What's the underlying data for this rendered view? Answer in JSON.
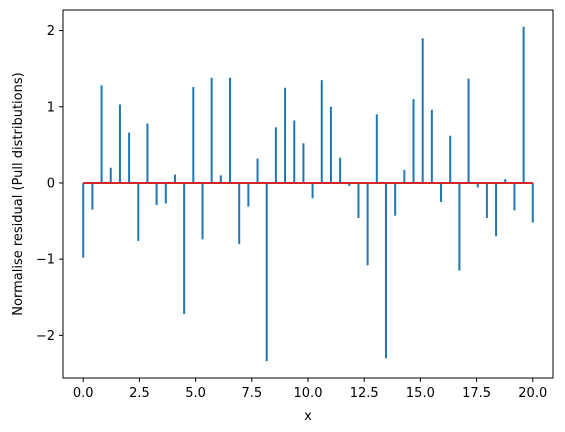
{
  "chart_data": {
    "type": "stem",
    "title": "",
    "xlabel": "x",
    "ylabel": "Normalise residual (Pull distributions)",
    "xlim": [
      -0.9,
      20.9
    ],
    "ylim": [
      -2.56,
      2.27
    ],
    "xticks": [
      0.0,
      2.5,
      5.0,
      7.5,
      10.0,
      12.5,
      15.0,
      17.5,
      20.0
    ],
    "xtick_labels": [
      "0.0",
      "2.5",
      "5.0",
      "7.5",
      "10.0",
      "12.5",
      "15.0",
      "17.5",
      "20.0"
    ],
    "yticks": [
      -2,
      -1,
      0,
      1,
      2
    ],
    "ytick_labels": [
      "−2",
      "−1",
      "0",
      "1",
      "2"
    ],
    "grid": false,
    "baseline": 0,
    "colors": {
      "stem": "#1f77b4",
      "baseline": "#d62728",
      "axes": "#000000"
    },
    "x": [
      0.0,
      0.408,
      0.816,
      1.224,
      1.633,
      2.041,
      2.449,
      2.857,
      3.265,
      3.673,
      4.082,
      4.49,
      4.898,
      5.306,
      5.714,
      6.122,
      6.531,
      6.939,
      7.347,
      7.755,
      8.163,
      8.571,
      8.98,
      9.388,
      9.796,
      10.204,
      10.612,
      11.02,
      11.429,
      11.837,
      12.245,
      12.653,
      13.061,
      13.469,
      13.878,
      14.286,
      14.694,
      15.102,
      15.51,
      15.918,
      16.327,
      16.735,
      17.143,
      17.551,
      17.959,
      18.367,
      18.776,
      19.184,
      19.592,
      20.0
    ],
    "values": [
      -0.98,
      -0.35,
      1.28,
      0.2,
      1.03,
      0.66,
      -0.76,
      0.78,
      -0.29,
      -0.27,
      0.11,
      -1.72,
      1.26,
      -0.74,
      1.38,
      0.1,
      1.38,
      -0.8,
      -0.31,
      0.32,
      -2.34,
      0.73,
      1.25,
      0.82,
      0.52,
      -0.2,
      1.35,
      1.0,
      0.33,
      -0.04,
      -0.46,
      -1.08,
      0.9,
      -2.3,
      -0.43,
      0.17,
      1.1,
      1.9,
      0.96,
      -0.25,
      0.62,
      -1.15,
      1.37,
      -0.06,
      -0.46,
      -0.7,
      0.05,
      -0.36,
      2.05,
      -0.52
    ]
  }
}
